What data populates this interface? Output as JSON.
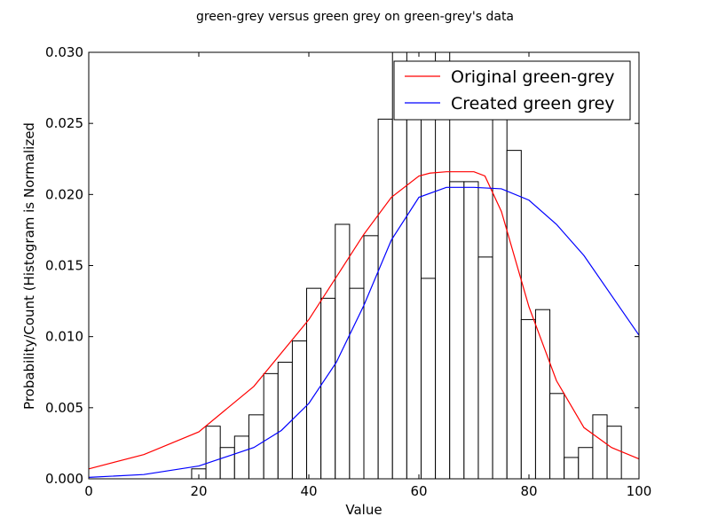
{
  "chart_data": {
    "type": "bar",
    "title": "green-grey versus green grey on green-grey's data",
    "xlabel": "Value",
    "ylabel": "Probability/Count (Histogram is Normalized",
    "xlim": [
      0,
      100
    ],
    "ylim": [
      0,
      0.03
    ],
    "xticks": [
      "0",
      "20",
      "40",
      "60",
      "80",
      "100"
    ],
    "yticks": [
      "0.000",
      "0.005",
      "0.010",
      "0.015",
      "0.020",
      "0.025",
      "0.030"
    ],
    "grid": false,
    "legend_position": "top-right",
    "histogram": {
      "bin_edges": [
        18.7,
        21.3,
        23.9,
        26.5,
        29.1,
        31.8,
        34.4,
        37.0,
        39.6,
        42.2,
        44.8,
        47.4,
        50.0,
        52.6,
        55.2,
        57.8,
        60.4,
        63.0,
        65.6,
        68.2,
        70.8,
        73.4,
        76.0,
        78.6,
        81.2,
        83.8,
        86.4,
        89.0,
        91.6,
        94.2,
        96.8
      ],
      "values": [
        0.0007,
        0.0037,
        0.0022,
        0.003,
        0.0045,
        0.0074,
        0.0082,
        0.0097,
        0.0134,
        0.0127,
        0.0179,
        0.0134,
        0.0171,
        0.0253,
        0.03,
        0.0253,
        0.0141,
        0.03,
        0.0209,
        0.0209,
        0.0156,
        0.0253,
        0.0231,
        0.0112,
        0.0119,
        0.006,
        0.0015,
        0.0022,
        0.0045,
        0.0037
      ],
      "color": "#000000"
    },
    "series": [
      {
        "name": "Original green-grey",
        "color": "#ff0000",
        "x": [
          0,
          10,
          20,
          30,
          40,
          45,
          50,
          55,
          60,
          62,
          65,
          68,
          70,
          72,
          75,
          80,
          85,
          90,
          95,
          100
        ],
        "y": [
          0.0007,
          0.0017,
          0.0033,
          0.0065,
          0.0112,
          0.0142,
          0.0172,
          0.0198,
          0.0213,
          0.0215,
          0.0216,
          0.0216,
          0.0216,
          0.0213,
          0.0188,
          0.0121,
          0.0069,
          0.0036,
          0.0022,
          0.0014
        ]
      },
      {
        "name": "Created green grey",
        "color": "#0000ff",
        "x": [
          0,
          10,
          20,
          30,
          35,
          40,
          45,
          50,
          55,
          60,
          65,
          70,
          75,
          80,
          85,
          90,
          95,
          100
        ],
        "y": [
          0.0001,
          0.0003,
          0.0009,
          0.0022,
          0.0034,
          0.0053,
          0.0082,
          0.0122,
          0.0168,
          0.0198,
          0.0205,
          0.0205,
          0.0204,
          0.0196,
          0.0179,
          0.0157,
          0.0129,
          0.0101
        ]
      }
    ]
  }
}
